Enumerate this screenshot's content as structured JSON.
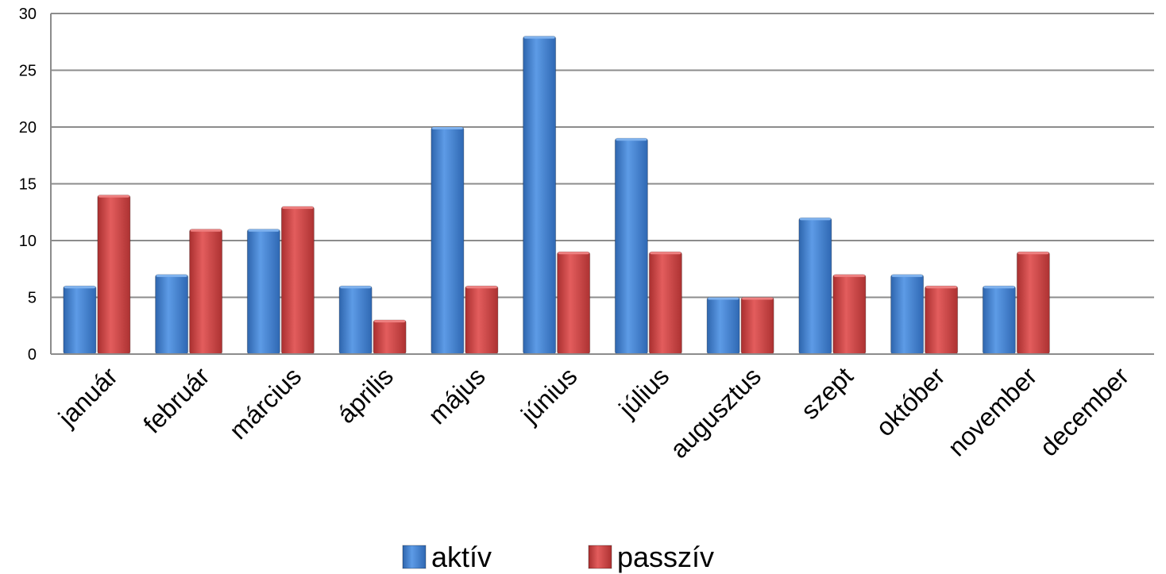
{
  "chart_data": {
    "type": "bar",
    "categories": [
      "január",
      "február",
      "március",
      "április",
      "május",
      "június",
      "július",
      "augusztus",
      "szept",
      "október",
      "november",
      "december"
    ],
    "series": [
      {
        "name": "aktív",
        "color": "#4a86d0",
        "values": [
          6,
          7,
          11,
          6,
          20,
          28,
          19,
          5,
          12,
          7,
          6,
          null
        ]
      },
      {
        "name": "passzív",
        "color": "#d04848",
        "values": [
          14,
          11,
          13,
          3,
          6,
          9,
          9,
          5,
          7,
          6,
          9,
          null
        ]
      }
    ],
    "ylim": [
      0,
      30
    ],
    "yticks": [
      0,
      5,
      10,
      15,
      20,
      25,
      30
    ],
    "grid": true,
    "legend": "bottom-center",
    "title": "",
    "xlabel": "",
    "ylabel": ""
  }
}
